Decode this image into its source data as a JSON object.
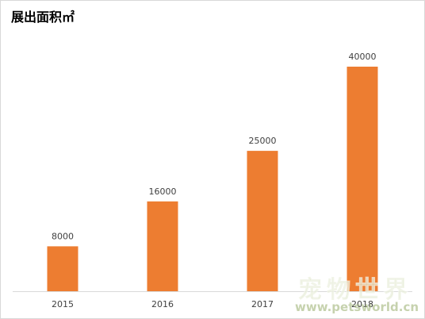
{
  "chart_data": {
    "type": "bar",
    "title": "展出面积㎡",
    "categories": [
      "2015",
      "2016",
      "2017",
      "2018"
    ],
    "values": [
      8000,
      16000,
      25000,
      40000
    ],
    "data_labels": [
      "8000",
      "16000",
      "25000",
      "40000"
    ],
    "xlabel": "",
    "ylabel": "",
    "ylim": [
      0,
      42500
    ],
    "grid": false,
    "legend": "none",
    "bar_color": "#ED7D31",
    "axis_color": "#d9d9d9",
    "label_color": "#404040"
  },
  "watermark": {
    "text": "宠物世界",
    "url": "www.petsworld.cn"
  }
}
